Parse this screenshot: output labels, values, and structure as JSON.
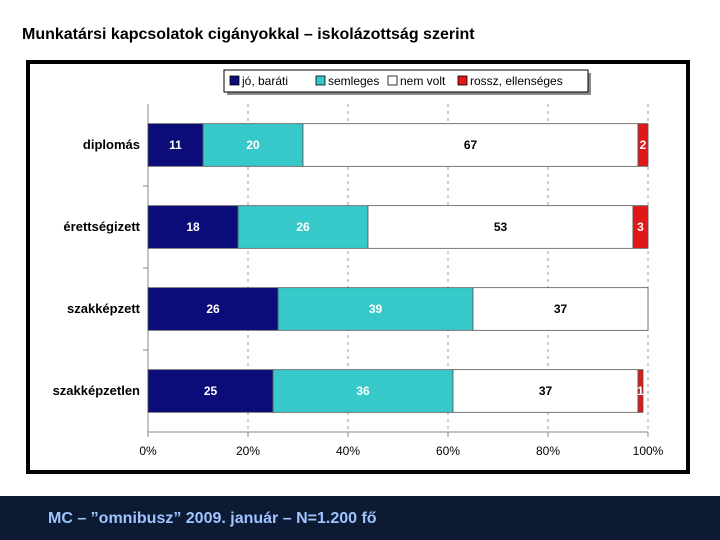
{
  "title": "Munkatársi kapcsolatok cigányokkal – iskolázottság szerint",
  "footer": "MC – ”omnibusz” 2009. január – N=1.200 fő",
  "chart_data": {
    "type": "bar",
    "orientation": "horizontal",
    "stacked": true,
    "categories": [
      "diplomás",
      "érettségizett",
      "szakképzett",
      "szakképzetlen"
    ],
    "series": [
      {
        "name": "jó, baráti",
        "color": "#0b0b7a",
        "label_color": "#ffffff",
        "values": [
          11,
          18,
          26,
          25
        ]
      },
      {
        "name": "semleges",
        "color": "#37c9c9",
        "label_color": "#ffffff",
        "values": [
          20,
          26,
          39,
          36
        ]
      },
      {
        "name": "nem volt",
        "color": "#ffffff",
        "label_color": "#000000",
        "values": [
          67,
          53,
          37,
          37
        ]
      },
      {
        "name": "rossz, ellenséges",
        "color": "#e01818",
        "label_color": "#ffffff",
        "values": [
          2,
          3,
          null,
          1
        ]
      }
    ],
    "xlim": [
      0,
      100
    ],
    "x_ticks": [
      "0%",
      "20%",
      "40%",
      "60%",
      "80%",
      "100%"
    ],
    "grid": true,
    "legend_position": "top"
  }
}
